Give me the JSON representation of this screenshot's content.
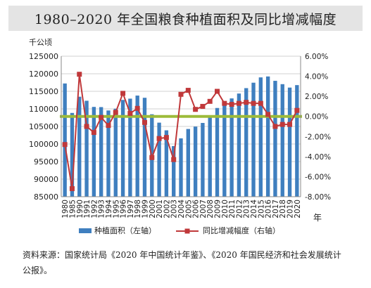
{
  "title": "1980–2020 年全国粮食种植面积及同比增减幅度",
  "source_text": "资料来源：国家统计局《2020 年中国统计年鉴》、《2020 年国民经济和社会发展统计公报》。",
  "colors": {
    "bar": "#3f7fbf",
    "line": "#c0383a",
    "zero_line": "#9dbb3a",
    "grid": "#d0d0d0"
  },
  "chart_data": {
    "type": "bar",
    "title": "1980–2020 年全国粮食种植面积及同比增减幅度",
    "y_left_unit": "千公顷",
    "x_unit": "年",
    "left_ylim": [
      85000,
      125000
    ],
    "left_ticks": [
      85000,
      90000,
      95000,
      100000,
      105000,
      110000,
      115000,
      120000,
      125000
    ],
    "right_ylim": [
      -8,
      6
    ],
    "right_ticks": [
      "-8.00%",
      "-6.00%",
      "-4.00%",
      "-2.00%",
      "0.00%",
      "2.00%",
      "4.00%",
      "6.00%"
    ],
    "categories": [
      "1980",
      "1985",
      "1990",
      "1991",
      "1992",
      "1993",
      "1994",
      "1995",
      "1996",
      "1997",
      "1998",
      "1999",
      "2000",
      "2001",
      "2002",
      "2003",
      "2004",
      "2005",
      "2006",
      "2007",
      "2008",
      "2009",
      "2010",
      "2011",
      "2012",
      "2013",
      "2014",
      "2015",
      "2016",
      "2017",
      "2018",
      "2019",
      "2020"
    ],
    "legend_position": "bottom",
    "series": [
      {
        "name": "种植面积（左轴）",
        "type": "bar",
        "axis": "left",
        "values": [
          117234,
          108845,
          113466,
          112314,
          110560,
          110509,
          109544,
          110060,
          112548,
          112912,
          113787,
          113161,
          108463,
          106080,
          103891,
          99410,
          101606,
          104278,
          104958,
          105999,
          107545,
          110255,
          111695,
          112980,
          114368,
          115908,
          117455,
          118963,
          119230,
          117989,
          117038,
          116064,
          116768
        ]
      },
      {
        "name": "同比增减幅度（右轴）",
        "type": "line",
        "axis": "right",
        "values": [
          -2.8,
          -7.2,
          4.2,
          -1.0,
          -1.6,
          -0.1,
          -0.9,
          0.4,
          2.3,
          0.3,
          0.8,
          -0.6,
          -4.1,
          -2.2,
          -2.1,
          -4.3,
          2.2,
          2.6,
          0.7,
          1.0,
          1.5,
          2.5,
          1.3,
          1.2,
          1.3,
          1.4,
          1.3,
          1.3,
          0.2,
          -1.0,
          -0.8,
          -0.8,
          0.6
        ]
      }
    ]
  }
}
